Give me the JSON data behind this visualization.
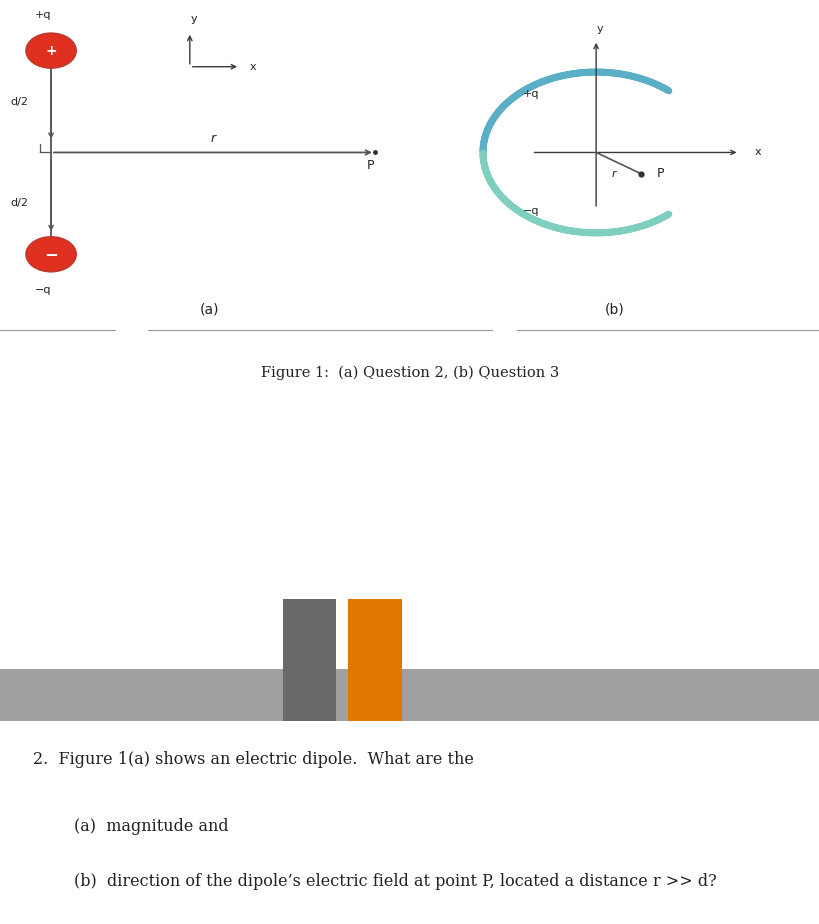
{
  "bg_color": "#ffffff",
  "gray_bar_color": "#a0a0a0",
  "gray_block_color": "#696969",
  "orange_block_color": "#e07800",
  "fig_caption": "Figure 1:  (a) Question 2, (b) Question 3",
  "question_text": "2.  Figure 1(a) shows an electric dipole.  What are the",
  "sub_a": "(a)  magnitude and",
  "sub_b": "(b)  direction of the dipole’s electric field at point P, located a distance r >> d?",
  "label_a": "(a)",
  "label_b": "(b)",
  "arc_color_top": "#5aafc7",
  "arc_color_bot": "#7ecfc0",
  "axis_color": "#3a3a3a",
  "dipole_line_color": "#555555",
  "charge_circle_edge": "#c0392b",
  "charge_circle_face": "#e03020",
  "text_color": "#222222",
  "line_color": "#aaaaaa"
}
